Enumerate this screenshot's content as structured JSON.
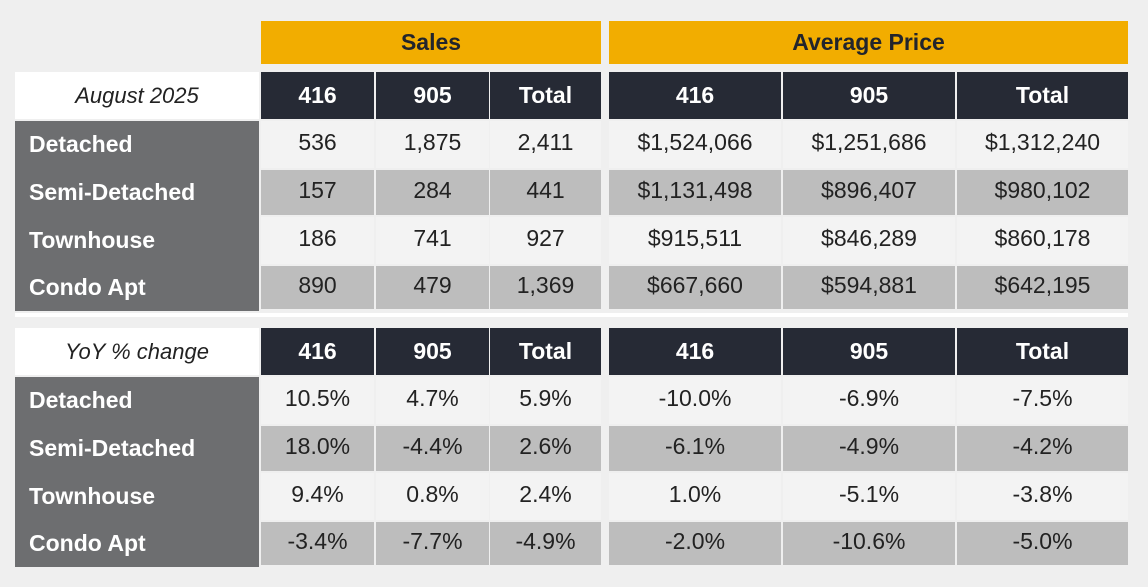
{
  "headers": {
    "sales": "Sales",
    "average_price": "Average Price",
    "columns": [
      "416",
      "905",
      "Total",
      "416",
      "905",
      "Total"
    ]
  },
  "top_table": {
    "period_label": "August 2025",
    "rows": [
      {
        "label": "Detached",
        "values": [
          "536",
          "1,875",
          "2,411",
          "$1,524,066",
          "$1,251,686",
          "$1,312,240"
        ]
      },
      {
        "label": "Semi-Detached",
        "values": [
          "157",
          "284",
          "441",
          "$1,131,498",
          "$896,407",
          "$980,102"
        ]
      },
      {
        "label": "Townhouse",
        "values": [
          "186",
          "741",
          "927",
          "$915,511",
          "$846,289",
          "$860,178"
        ]
      },
      {
        "label": "Condo Apt",
        "values": [
          "890",
          "479",
          "1,369",
          "$667,660",
          "$594,881",
          "$642,195"
        ]
      }
    ]
  },
  "bottom_table": {
    "period_label": "YoY % change",
    "rows": [
      {
        "label": "Detached",
        "values": [
          "10.5%",
          "4.7%",
          "5.9%",
          "-10.0%",
          "-6.9%",
          "-7.5%"
        ]
      },
      {
        "label": "Semi-Detached",
        "values": [
          "18.0%",
          "-4.4%",
          "2.6%",
          "-6.1%",
          "-4.9%",
          "-4.2%"
        ]
      },
      {
        "label": "Townhouse",
        "values": [
          "9.4%",
          "0.8%",
          "2.4%",
          "1.0%",
          "-5.1%",
          "-3.8%"
        ]
      },
      {
        "label": "Condo Apt",
        "values": [
          "-3.4%",
          "-7.7%",
          "-4.9%",
          "-2.0%",
          "-10.6%",
          "-5.0%"
        ]
      }
    ]
  },
  "colors": {
    "gold": "#f2ad00",
    "dark_header": "#262a35",
    "row_label_bg": "#6d6e70",
    "shaded_row": "#bdbdbd",
    "light_row": "#f3f3f3"
  }
}
